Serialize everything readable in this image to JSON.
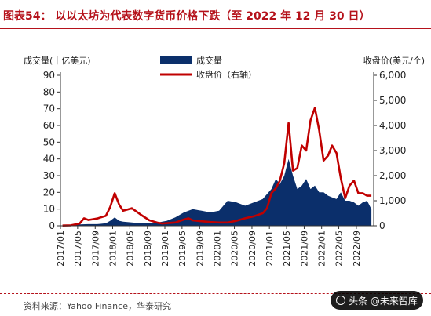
{
  "header": {
    "title": "图表54： 以以太坊为代表数字货币价格下跌（至 2022 年 12 月 30 日）"
  },
  "footer": {
    "source": "资料来源：Yahoo Finance，华泰研究",
    "watermark": "头条 @未来智库"
  },
  "colors": {
    "volume": "#0b2f6b",
    "price": "#c00000",
    "title": "#b5121b"
  },
  "chart_data": {
    "type": "area",
    "y_left_label": "成交量(十亿美元)",
    "y_right_label": "收盘价(美元/个)",
    "ylim_left": [
      0,
      90
    ],
    "ylim_right": [
      0,
      6000
    ],
    "y_left_ticks": [
      "0",
      "10",
      "20",
      "30",
      "40",
      "50",
      "60",
      "70",
      "80",
      "90"
    ],
    "y_right_ticks": [
      "0",
      "1,000",
      "2,000",
      "3,000",
      "4,000",
      "5,000",
      "6,000"
    ],
    "x_ticks": [
      "2017/01",
      "2017/05",
      "2017/09",
      "2018/01",
      "2018/05",
      "2018/09",
      "2019/01",
      "2019/05",
      "2019/09",
      "2020/01",
      "2020/05",
      "2020/09",
      "2021/01",
      "2021/05",
      "2021/09",
      "2022/01",
      "2022/05",
      "2022/09"
    ],
    "x_range": [
      "2017-01-01",
      "2022-12-31"
    ],
    "grid": false,
    "legend_position": "top-left",
    "series": [
      {
        "name": "成交量",
        "type": "area",
        "axis": "left",
        "x": [
          "2017-01",
          "2017-03",
          "2017-05",
          "2017-07",
          "2017-09",
          "2017-11",
          "2017-12",
          "2018-01",
          "2018-02",
          "2018-03",
          "2018-05",
          "2018-07",
          "2018-09",
          "2018-11",
          "2019-01",
          "2019-03",
          "2019-05",
          "2019-07",
          "2019-09",
          "2019-11",
          "2020-01",
          "2020-03",
          "2020-05",
          "2020-07",
          "2020-09",
          "2020-11",
          "2021-01",
          "2021-02",
          "2021-03",
          "2021-04",
          "2021-05",
          "2021-06",
          "2021-07",
          "2021-08",
          "2021-09",
          "2021-10",
          "2021-11",
          "2021-12",
          "2022-01",
          "2022-02",
          "2022-03",
          "2022-04",
          "2022-05",
          "2022-06",
          "2022-07",
          "2022-08",
          "2022-09",
          "2022-10",
          "2022-11",
          "2022-12"
        ],
        "values": [
          0.1,
          0.2,
          0.8,
          1,
          1,
          1.5,
          3,
          5,
          3,
          2.5,
          2,
          1.5,
          1.5,
          2,
          3,
          5,
          8,
          10,
          9,
          8,
          9,
          15,
          14,
          12,
          14,
          16,
          22,
          28,
          25,
          30,
          40,
          30,
          22,
          24,
          28,
          22,
          24,
          20,
          20,
          18,
          17,
          16,
          20,
          15,
          15,
          14,
          12,
          14,
          15,
          10
        ]
      },
      {
        "name": "收盘价（右轴）",
        "type": "line",
        "axis": "right",
        "x": [
          "2017-01",
          "2017-03",
          "2017-05",
          "2017-06",
          "2017-07",
          "2017-09",
          "2017-11",
          "2017-12",
          "2018-01",
          "2018-02",
          "2018-03",
          "2018-04",
          "2018-05",
          "2018-07",
          "2018-09",
          "2018-11",
          "2018-12",
          "2019-03",
          "2019-05",
          "2019-06",
          "2019-07",
          "2019-09",
          "2019-11",
          "2020-01",
          "2020-03",
          "2020-05",
          "2020-07",
          "2020-09",
          "2020-11",
          "2020-12",
          "2021-01",
          "2021-02",
          "2021-03",
          "2021-04",
          "2021-05",
          "2021-06",
          "2021-07",
          "2021-08",
          "2021-09",
          "2021-10",
          "2021-11",
          "2021-12",
          "2022-01",
          "2022-02",
          "2022-03",
          "2022-04",
          "2022-05",
          "2022-06",
          "2022-07",
          "2022-08",
          "2022-09",
          "2022-10",
          "2022-11",
          "2022-12"
        ],
        "values": [
          10,
          20,
          90,
          300,
          230,
          290,
          400,
          750,
          1300,
          850,
          600,
          650,
          700,
          450,
          220,
          120,
          90,
          130,
          250,
          300,
          220,
          180,
          150,
          130,
          130,
          200,
          300,
          380,
          500,
          700,
          1300,
          1500,
          1800,
          2500,
          4100,
          2200,
          2300,
          3200,
          3000,
          4200,
          4700,
          3800,
          2600,
          2800,
          3200,
          2900,
          1900,
          1100,
          1600,
          1800,
          1300,
          1300,
          1200,
          1200
        ]
      }
    ]
  }
}
